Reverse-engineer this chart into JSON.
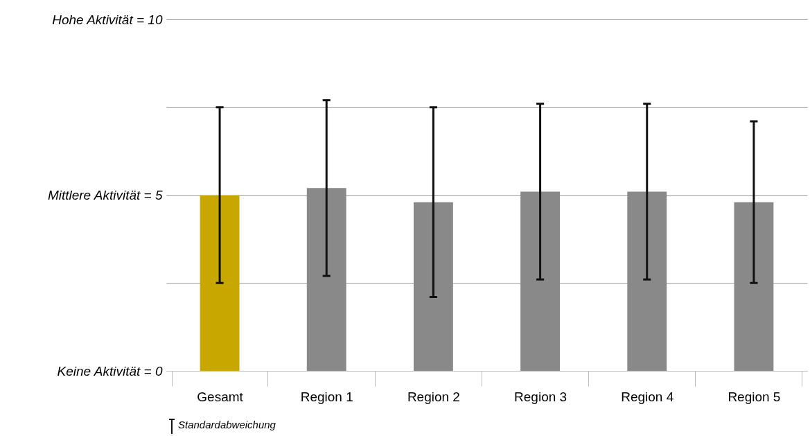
{
  "chart_data": {
    "type": "bar",
    "categories": [
      "Gesamt",
      "Region 1",
      "Region 2",
      "Region 3",
      "Region 4",
      "Region 5"
    ],
    "values": [
      5.0,
      5.2,
      4.8,
      5.1,
      5.1,
      4.8
    ],
    "colors": [
      "#c8a800",
      "#898989",
      "#898989",
      "#898989",
      "#898989",
      "#898989"
    ],
    "errors": [
      [
        2.5,
        7.5
      ],
      [
        2.7,
        7.7
      ],
      [
        2.1,
        7.5
      ],
      [
        2.6,
        7.6
      ],
      [
        2.6,
        7.6
      ],
      [
        2.5,
        7.1
      ]
    ],
    "ylim": [
      0,
      10
    ],
    "yticks": [
      {
        "value": 0,
        "label": "Keine Aktivität = 0"
      },
      {
        "value": 2.5,
        "label": null
      },
      {
        "value": 5,
        "label": "Mittlere Aktivität = 5"
      },
      {
        "value": 7.5,
        "label": null
      },
      {
        "value": 10,
        "label": "Hohe Aktivität = 10"
      }
    ],
    "grid": "y",
    "annotations": [
      "Standardabweichung"
    ]
  }
}
